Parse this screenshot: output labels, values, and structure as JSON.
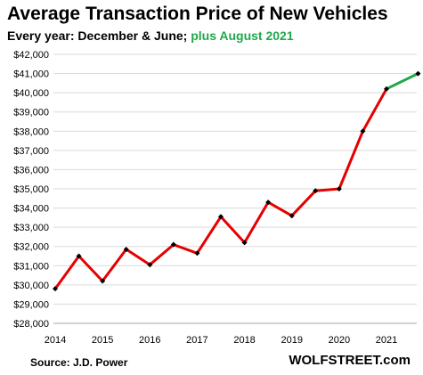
{
  "header": {
    "title": "Average Transaction  Price of New Vehicles",
    "subtitle_main": "Every year: December & June; ",
    "subtitle_accent": "plus August 2021"
  },
  "footer": {
    "source": "Source: J.D. Power",
    "brand": "WOLFSTREET.com"
  },
  "colors": {
    "main_line": "#e60000",
    "recent_line": "#1fa84b",
    "marker": "#000000",
    "gridline": "#d9d9d9"
  },
  "chart_data": {
    "type": "line",
    "title": "Average Transaction  Price of New Vehicles",
    "subtitle": "Every year: December & June; plus August 2021",
    "xlabel": "",
    "ylabel": "",
    "ylim": [
      28000,
      42000
    ],
    "y_ticks": [
      28000,
      29000,
      30000,
      31000,
      32000,
      33000,
      34000,
      35000,
      36000,
      37000,
      38000,
      39000,
      40000,
      41000,
      42000
    ],
    "y_tick_labels": [
      "$28,000",
      "$29,000",
      "$30,000",
      "$31,000",
      "$32,000",
      "$33,000",
      "$34,000",
      "$35,000",
      "$36,000",
      "$37,000",
      "$38,000",
      "$39,000",
      "$40,000",
      "$41,000",
      "$42,000"
    ],
    "x_ticks": [
      2014,
      2015,
      2016,
      2017,
      2018,
      2019,
      2020,
      2021
    ],
    "x_tick_labels": [
      "2014",
      "2015",
      "2016",
      "2017",
      "2018",
      "2019",
      "2020",
      "2021"
    ],
    "grid": true,
    "legend": "none",
    "series": [
      {
        "color": "#e60000",
        "points": [
          {
            "date": "2013-12",
            "value": 29800
          },
          {
            "date": "2014-06",
            "value": 31500
          },
          {
            "date": "2014-12",
            "value": 30200
          },
          {
            "date": "2015-06",
            "value": 31850
          },
          {
            "date": "2015-12",
            "value": 31050
          },
          {
            "date": "2016-06",
            "value": 32100
          },
          {
            "date": "2016-12",
            "value": 31650
          },
          {
            "date": "2017-06",
            "value": 33550
          },
          {
            "date": "2017-12",
            "value": 32200
          },
          {
            "date": "2018-06",
            "value": 34300
          },
          {
            "date": "2018-12",
            "value": 33600
          },
          {
            "date": "2019-06",
            "value": 34900
          },
          {
            "date": "2019-12",
            "value": 35000
          },
          {
            "date": "2020-06",
            "value": 38000
          },
          {
            "date": "2020-12",
            "value": 40200
          }
        ]
      },
      {
        "color": "#1fa84b",
        "points": [
          {
            "date": "2020-12",
            "value": 40200
          },
          {
            "date": "2021-08",
            "value": 41000
          }
        ]
      }
    ]
  }
}
